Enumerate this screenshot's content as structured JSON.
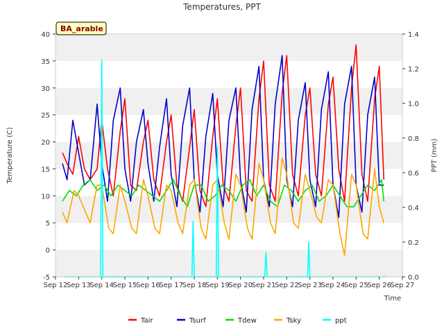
{
  "chart_data": {
    "type": "line",
    "title": "Temperatures, PPT",
    "site_label": "BA_arable",
    "xlabel": "Time",
    "ylabel": "Temperature (C)",
    "ylabel_right": "PPT (mm)",
    "x_ticks": [
      "Sep 12",
      "Sep 13",
      "Sep 14",
      "Sep 15",
      "Sep 16",
      "Sep 17",
      "Sep 18",
      "Sep 19",
      "Sep 20",
      "Sep 21",
      "Sep 22",
      "Sep 23",
      "Sep 24",
      "Sep 25",
      "Sep 26",
      "Sep 27"
    ],
    "xlim": [
      12,
      27
    ],
    "ylim": [
      -5,
      40
    ],
    "y_ticks": [
      "-5",
      "0",
      "5",
      "10",
      "15",
      "20",
      "25",
      "30",
      "35",
      "40"
    ],
    "ylim_right": [
      0.0,
      1.4
    ],
    "y_ticks_right": [
      "0.0",
      "0.2",
      "0.4",
      "0.6",
      "0.8",
      "1.0",
      "1.2",
      "1.4"
    ],
    "grid": "horizontal bands",
    "legend_position": "bottom",
    "colors": {
      "Tair": "#ff0000",
      "Tsurf": "#0000cc",
      "Tdew": "#00dd00",
      "Tsky": "#ffa500",
      "ppt": "#00ffff",
      "band": "#f0f0f0",
      "site_label_bg": "#ffffc0"
    },
    "legend": [
      "Tair",
      "Tsurf",
      "Tdew",
      "Tsky",
      "ppt"
    ],
    "series": [
      {
        "name": "Tair",
        "axis": "left",
        "x": [
          12.3,
          12.5,
          12.75,
          13.0,
          13.25,
          13.5,
          13.8,
          14.0,
          14.25,
          14.5,
          14.8,
          15.0,
          15.25,
          15.5,
          15.8,
          16.0,
          16.25,
          16.5,
          16.8,
          17.0,
          17.25,
          17.5,
          17.8,
          18.0,
          18.25,
          18.5,
          18.8,
          19.0,
          19.25,
          19.5,
          19.8,
          20.0,
          20.25,
          20.5,
          20.8,
          21.0,
          21.25,
          21.5,
          21.8,
          22.0,
          22.25,
          22.5,
          22.8,
          23.0,
          23.25,
          23.5,
          23.8,
          24.0,
          24.25,
          24.5,
          24.8,
          25.0,
          25.25,
          25.5,
          25.8,
          26.0,
          26.2
        ],
        "y": [
          18,
          16,
          14,
          21,
          15,
          13,
          15,
          24,
          15,
          10,
          22,
          28,
          12,
          11,
          20,
          24,
          13,
          10,
          20,
          25,
          12,
          9,
          19,
          26,
          11,
          8,
          21,
          28,
          12,
          9,
          23,
          30,
          11,
          9,
          28,
          35,
          12,
          9,
          29,
          36,
          14,
          10,
          25,
          30,
          14,
          10,
          27,
          32,
          15,
          9,
          30,
          38,
          14,
          9,
          28,
          34,
          13
        ]
      },
      {
        "name": "Tsurf",
        "axis": "left",
        "x": [
          12.3,
          12.5,
          12.75,
          13.0,
          13.25,
          13.5,
          13.8,
          14.0,
          14.25,
          14.5,
          14.8,
          15.0,
          15.25,
          15.5,
          15.8,
          16.0,
          16.25,
          16.5,
          16.8,
          17.0,
          17.25,
          17.5,
          17.8,
          18.0,
          18.25,
          18.5,
          18.8,
          19.0,
          19.25,
          19.5,
          19.8,
          20.0,
          20.25,
          20.5,
          20.8,
          21.0,
          21.25,
          21.5,
          21.8,
          22.0,
          22.25,
          22.5,
          22.8,
          23.0,
          23.25,
          23.5,
          23.8,
          24.0,
          24.25,
          24.5,
          24.8,
          25.0,
          25.25,
          25.5,
          25.8,
          26.0,
          26.2
        ],
        "y": [
          16,
          13,
          24,
          18,
          12,
          13,
          27,
          16,
          9,
          24,
          30,
          15,
          9,
          20,
          26,
          16,
          9,
          19,
          28,
          14,
          8,
          23,
          30,
          13,
          7,
          21,
          29,
          14,
          8,
          24,
          30,
          13,
          7,
          26,
          34,
          13,
          8,
          27,
          36,
          13,
          8,
          24,
          31,
          13,
          8,
          26,
          33,
          12,
          6,
          27,
          34,
          12,
          7,
          25,
          32,
          12,
          12
        ]
      },
      {
        "name": "Tdew",
        "axis": "left",
        "x": [
          12.3,
          12.6,
          12.9,
          13.2,
          13.5,
          13.8,
          14.1,
          14.4,
          14.7,
          15.0,
          15.3,
          15.6,
          15.9,
          16.2,
          16.5,
          16.8,
          17.1,
          17.4,
          17.7,
          18.0,
          18.3,
          18.6,
          18.9,
          19.2,
          19.5,
          19.8,
          20.1,
          20.4,
          20.7,
          21.0,
          21.3,
          21.6,
          21.9,
          22.2,
          22.5,
          22.8,
          23.1,
          23.4,
          23.7,
          24.0,
          24.3,
          24.6,
          24.9,
          25.2,
          25.5,
          25.8,
          26.1,
          26.2
        ],
        "y": [
          9,
          11,
          10,
          12,
          13,
          11,
          12,
          10,
          12,
          11,
          10,
          12,
          11,
          10,
          9,
          11,
          13,
          10,
          8,
          12,
          12,
          9,
          10,
          12,
          11,
          9,
          12,
          13,
          10,
          12,
          9,
          8,
          12,
          11,
          9,
          11,
          12,
          9,
          10,
          12,
          10,
          8,
          8,
          10,
          12,
          11,
          13,
          9
        ]
      },
      {
        "name": "Tsky",
        "axis": "left",
        "x": [
          12.3,
          12.5,
          12.8,
          13.0,
          13.3,
          13.5,
          13.8,
          14.0,
          14.3,
          14.5,
          14.8,
          15.0,
          15.3,
          15.5,
          15.8,
          16.0,
          16.3,
          16.5,
          16.8,
          17.0,
          17.3,
          17.5,
          17.8,
          18.0,
          18.3,
          18.5,
          18.8,
          19.0,
          19.3,
          19.5,
          19.8,
          20.0,
          20.3,
          20.5,
          20.8,
          21.0,
          21.3,
          21.5,
          21.8,
          22.0,
          22.3,
          22.5,
          22.8,
          23.0,
          23.3,
          23.5,
          23.8,
          24.0,
          24.3,
          24.5,
          24.8,
          25.0,
          25.3,
          25.5,
          25.8,
          26.0,
          26.2
        ],
        "y": [
          7,
          5,
          11,
          10,
          7,
          5,
          12,
          12,
          4,
          3,
          12,
          9,
          4,
          3,
          13,
          10,
          4,
          3,
          12,
          11,
          5,
          3,
          12,
          13,
          4,
          2,
          12,
          13,
          5,
          2,
          14,
          12,
          4,
          2,
          16,
          13,
          5,
          3,
          17,
          14,
          5,
          4,
          14,
          11,
          6,
          5,
          13,
          12,
          3,
          -1,
          14,
          12,
          3,
          2,
          15,
          8,
          5
        ]
      },
      {
        "name": "ppt",
        "axis": "right",
        "x": [
          13.95,
          14.0,
          14.05,
          17.9,
          17.95,
          18.0,
          18.95,
          19.0,
          19.05,
          21.05,
          21.1,
          21.15,
          22.9,
          22.95,
          23.0
        ],
        "y": [
          0.0,
          1.25,
          0.0,
          0.0,
          0.32,
          0.0,
          0.0,
          0.75,
          0.0,
          0.0,
          0.14,
          0.0,
          0.0,
          0.2,
          0.0
        ]
      }
    ]
  }
}
